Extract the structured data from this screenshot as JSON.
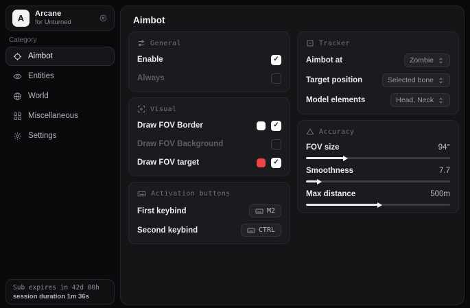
{
  "app": {
    "logo_letter": "A",
    "name": "Arcane",
    "subtitle": "for Unturned"
  },
  "sidebar": {
    "category_label": "Category",
    "items": [
      {
        "label": "Aimbot",
        "selected": true
      },
      {
        "label": "Entities",
        "selected": false
      },
      {
        "label": "World",
        "selected": false
      },
      {
        "label": "Miscellaneous",
        "selected": false
      },
      {
        "label": "Settings",
        "selected": false
      }
    ],
    "footer": {
      "sub_expires": "Sub expires in 42d 00h",
      "session_duration": "session duration 1m 36s"
    }
  },
  "main": {
    "title": "Aimbot",
    "cards": {
      "general": {
        "title": "General",
        "rows": [
          {
            "label": "Enable",
            "checked": true,
            "muted": false
          },
          {
            "label": "Always",
            "checked": false,
            "muted": true
          }
        ]
      },
      "visual": {
        "title": "Visual",
        "rows": [
          {
            "label": "Draw FOV Border",
            "swatch": "#fafafa",
            "checked": true,
            "muted": false
          },
          {
            "label": "Draw FOV Background",
            "checked": false,
            "muted": true
          },
          {
            "label": "Draw FOV target",
            "swatch": "#ef4444",
            "checked": true,
            "muted": false
          }
        ]
      },
      "activation": {
        "title": "Activation buttons",
        "rows": [
          {
            "label": "First keybind",
            "key": "M2"
          },
          {
            "label": "Second keybind",
            "key": "CTRL"
          }
        ]
      },
      "tracker": {
        "title": "Tracker",
        "rows": [
          {
            "label": "Aimbot at",
            "value": "Zombie"
          },
          {
            "label": "Target position",
            "value": "Selected bone"
          },
          {
            "label": "Model elements",
            "value": "Head, Neck"
          }
        ]
      },
      "accuracy": {
        "title": "Accuracy",
        "rows": [
          {
            "label": "FOV size",
            "value": "94°",
            "percent": 26
          },
          {
            "label": "Smoothness",
            "value": "7.7",
            "percent": 8
          },
          {
            "label": "Max distance",
            "value": "500m",
            "percent": 50
          }
        ]
      }
    }
  },
  "icons": {
    "check": "✓"
  },
  "colors": {
    "swatch_white": "#fafafa",
    "accent_red": "#ef4444"
  }
}
